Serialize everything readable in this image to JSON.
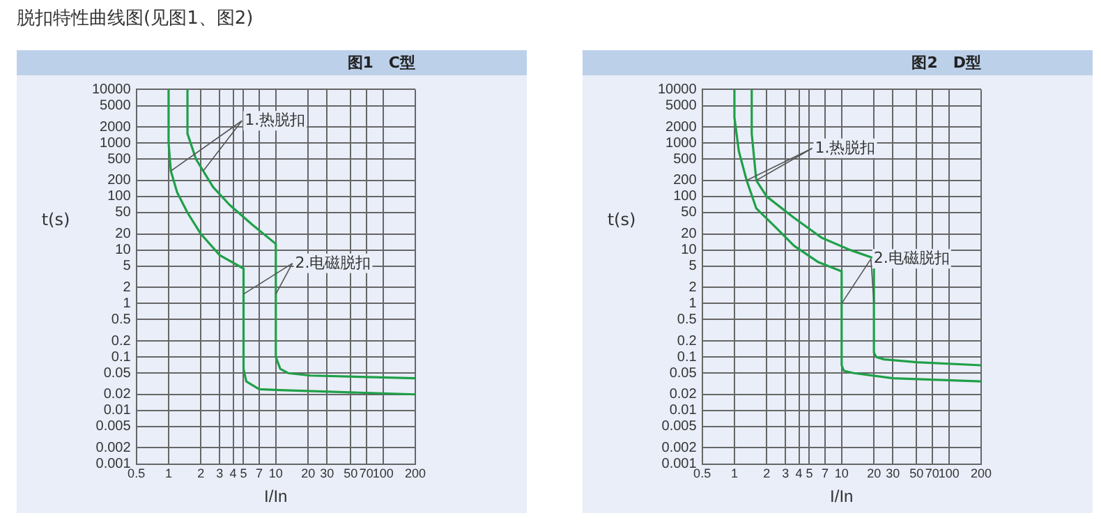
{
  "chart_data": [
    {
      "type": "line",
      "title": "图1　C型",
      "xlabel": "I/In",
      "ylabel": "t(s)",
      "log": "xy",
      "grid": true,
      "legend": false,
      "marker": "none",
      "line_style": "solid",
      "annotations": [
        "脱扣特性曲线图(见图1、图2)",
        {
          "text": "1.热脱扣",
          "x": 1.05,
          "y": 300
        },
        {
          "text": "2.电磁脱扣",
          "x": 5,
          "y": 1.5
        }
      ],
      "xlim": [
        0.5,
        200
      ],
      "xticks": [
        0.5,
        1,
        2,
        3,
        4,
        5,
        7,
        10,
        20,
        30,
        50,
        70,
        100,
        200
      ],
      "ylim": [
        0.001,
        10000
      ],
      "yticks": [
        0.001,
        0.002,
        0.005,
        0.01,
        0.02,
        0.05,
        0.1,
        0.2,
        0.5,
        1,
        2,
        5,
        10,
        20,
        50,
        100,
        200,
        500,
        1000,
        2000,
        5000,
        10000
      ],
      "series": [
        {
          "color": "#1fa048",
          "x": [
            1,
            1,
            1.05,
            1.2,
            1.5,
            2,
            3,
            5,
            5,
            5.3,
            7,
            11,
            200
          ],
          "values": [
            10000,
            1000,
            300,
            120,
            50,
            20,
            8,
            4.5,
            0.06,
            0.035,
            0.025,
            0.024,
            0.02
          ]
        },
        {
          "color": "#1fa048",
          "x": [
            1.5,
            1.5,
            1.8,
            2.6,
            3.7,
            6,
            10,
            10,
            11,
            13,
            21,
            200
          ],
          "values": [
            10000,
            1500,
            500,
            150,
            70,
            30,
            13,
            0.1,
            0.06,
            0.05,
            0.045,
            0.04
          ]
        }
      ]
    },
    {
      "type": "line",
      "title": "图2　D型",
      "xlabel": "I/In",
      "ylabel": "t(s)",
      "log": "xy",
      "grid": true,
      "legend": false,
      "marker": "none",
      "line_style": "solid",
      "annotations": [
        {
          "text": "1.热脱扣",
          "x": 1.3,
          "y": 200
        },
        {
          "text": "2.电磁脱扣",
          "x": 10,
          "y": 1
        }
      ],
      "xlim": [
        0.5,
        200
      ],
      "xticks": [
        0.5,
        1,
        2,
        3,
        4,
        5,
        7,
        10,
        20,
        30,
        50,
        70,
        100,
        200
      ],
      "ylim": [
        0.001,
        10000
      ],
      "yticks": [
        0.001,
        0.002,
        0.005,
        0.01,
        0.02,
        0.05,
        0.1,
        0.2,
        0.5,
        1,
        2,
        5,
        10,
        20,
        50,
        100,
        200,
        500,
        1000,
        2000,
        5000,
        10000
      ],
      "series": [
        {
          "color": "#1fa048",
          "x": [
            1,
            1,
            1.1,
            1.3,
            1.6,
            2.5,
            3.6,
            6,
            10,
            10,
            10.5,
            13,
            30,
            200
          ],
          "values": [
            10000,
            3000,
            700,
            200,
            60,
            25,
            12,
            6,
            4,
            0.07,
            0.055,
            0.05,
            0.04,
            0.035
          ]
        },
        {
          "color": "#1fa048",
          "x": [
            1.45,
            1.45,
            1.6,
            2,
            3.6,
            6.5,
            12,
            20,
            20,
            21,
            25,
            50,
            200
          ],
          "values": [
            10000,
            1500,
            200,
            100,
            40,
            17,
            10,
            7,
            0.12,
            0.1,
            0.09,
            0.08,
            0.07
          ]
        }
      ]
    }
  ]
}
